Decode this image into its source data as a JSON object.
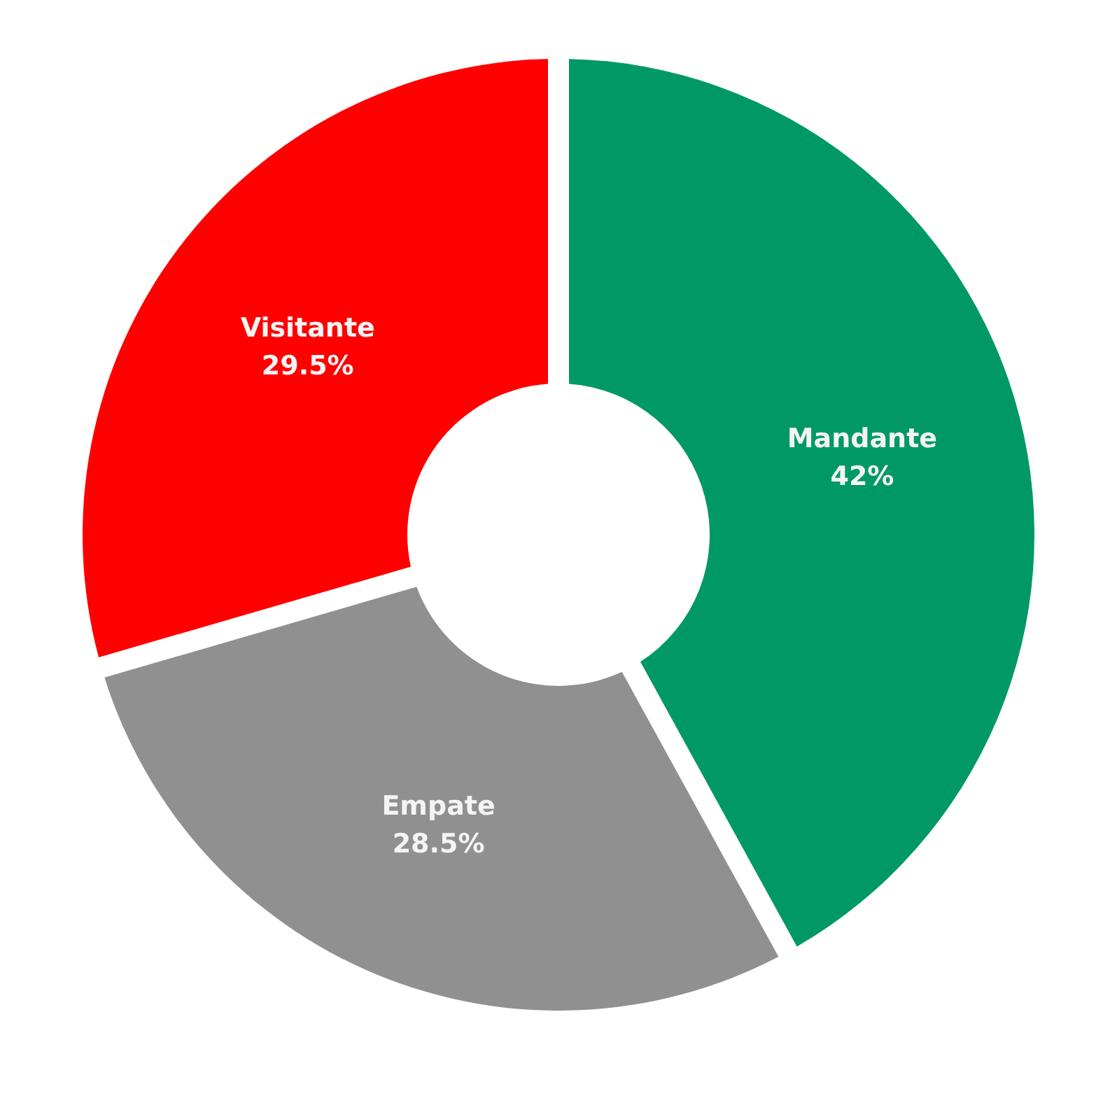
{
  "chart_data": {
    "type": "donut",
    "categories": [
      "Mandante",
      "Empate",
      "Visitante"
    ],
    "values": [
      42,
      28.5,
      29.5
    ],
    "colors": [
      "#009966",
      "#909090",
      "#ff0000"
    ],
    "value_labels": [
      "42%",
      "28.5%",
      "29.5%"
    ]
  }
}
